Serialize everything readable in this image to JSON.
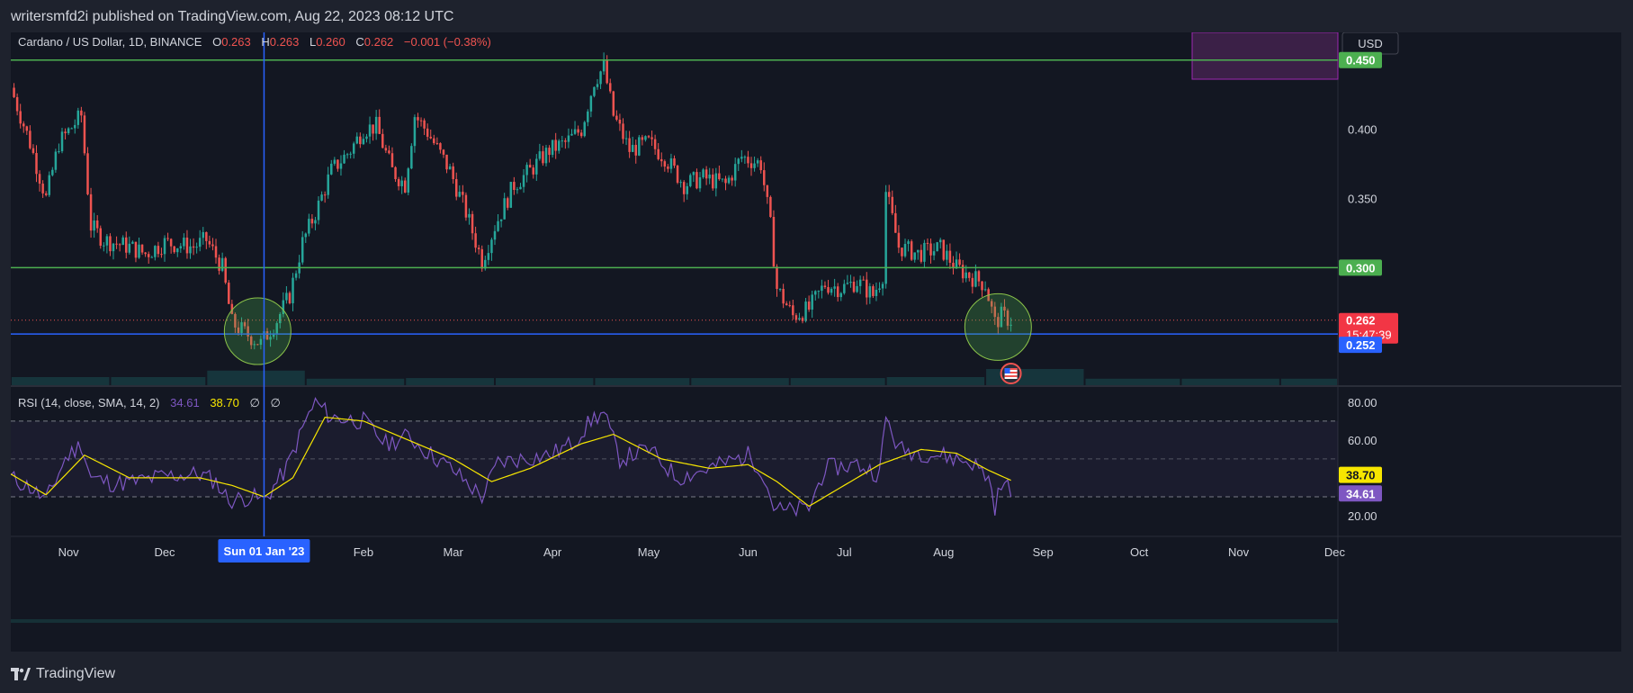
{
  "header": {
    "publisher": "writersmfd2i published on TradingView.com, Aug 22, 2023 08:12 UTC"
  },
  "legend": {
    "symbol": "Cardano / US Dollar, 1D, BINANCE",
    "o_label": "O",
    "o_value": "0.263",
    "h_label": "H",
    "h_value": "0.263",
    "l_label": "L",
    "l_value": "0.260",
    "c_label": "C",
    "c_value": "0.262",
    "change": "−0.001 (−0.38%)"
  },
  "currency_button": "USD",
  "price_axis": {
    "ticks": [
      "0.450",
      "0.400",
      "0.350",
      "0.300"
    ],
    "last_price": "0.262",
    "countdown": "15:47:39",
    "support_label": "0.252",
    "resistance_high": "0.450",
    "resistance_low": "0.300"
  },
  "rsi": {
    "title": "RSI (14, close, SMA, 14, 2)",
    "rsi_value": "34.61",
    "sma_value": "38.70",
    "extra1": "∅",
    "extra2": "∅",
    "ticks": [
      "80.00",
      "60.00",
      "20.00"
    ],
    "rsi_badge": "34.61",
    "sma_badge": "38.70"
  },
  "time_axis": {
    "labels": [
      "Nov",
      "Dec",
      "Feb",
      "Mar",
      "Apr",
      "May",
      "Jun",
      "Jul",
      "Aug",
      "Sep",
      "Oct",
      "Nov",
      "Dec"
    ],
    "crosshair_label": "Sun 01 Jan '23"
  },
  "brand": "TradingView",
  "colors": {
    "background": "#131722",
    "up": "#26a69a",
    "down": "#ef5350",
    "level_line": "#4caf50",
    "support_line": "#2962ff",
    "rsi_line": "#7e57c2",
    "rsi_sma": "#f7e600"
  },
  "chart_data": {
    "type": "candlestick",
    "symbol": "ADA/USD",
    "interval": "1D",
    "exchange": "BINANCE",
    "x_range": [
      "2022-10-14",
      "2023-12-02"
    ],
    "y_range": [
      0.215,
      0.47
    ],
    "horizontal_levels": [
      0.45,
      0.3,
      0.252
    ],
    "last_price": 0.262,
    "price_keypoints": [
      [
        "2022-10-14",
        0.43
      ],
      [
        "2022-10-20",
        0.39
      ],
      [
        "2022-10-25",
        0.35
      ],
      [
        "2022-10-29",
        0.39
      ],
      [
        "2022-11-05",
        0.41
      ],
      [
        "2022-11-08",
        0.33
      ],
      [
        "2022-11-12",
        0.32
      ],
      [
        "2022-11-20",
        0.315
      ],
      [
        "2022-11-25",
        0.31
      ],
      [
        "2022-12-01",
        0.318
      ],
      [
        "2022-12-10",
        0.315
      ],
      [
        "2022-12-14",
        0.32
      ],
      [
        "2022-12-19",
        0.3
      ],
      [
        "2022-12-22",
        0.26
      ],
      [
        "2022-12-26",
        0.253
      ],
      [
        "2022-12-31",
        0.245
      ],
      [
        "2023-01-05",
        0.262
      ],
      [
        "2023-01-09",
        0.28
      ],
      [
        "2023-01-13",
        0.318
      ],
      [
        "2023-01-18",
        0.345
      ],
      [
        "2023-01-22",
        0.37
      ],
      [
        "2023-01-28",
        0.385
      ],
      [
        "2023-02-01",
        0.4
      ],
      [
        "2023-02-05",
        0.402
      ],
      [
        "2023-02-10",
        0.37
      ],
      [
        "2023-02-14",
        0.36
      ],
      [
        "2023-02-17",
        0.41
      ],
      [
        "2023-02-21",
        0.398
      ],
      [
        "2023-02-28",
        0.37
      ],
      [
        "2023-03-05",
        0.34
      ],
      [
        "2023-03-10",
        0.305
      ],
      [
        "2023-03-14",
        0.33
      ],
      [
        "2023-03-20",
        0.36
      ],
      [
        "2023-03-25",
        0.37
      ],
      [
        "2023-03-31",
        0.385
      ],
      [
        "2023-04-05",
        0.39
      ],
      [
        "2023-04-10",
        0.4
      ],
      [
        "2023-04-14",
        0.435
      ],
      [
        "2023-04-17",
        0.445
      ],
      [
        "2023-04-20",
        0.41
      ],
      [
        "2023-04-25",
        0.385
      ],
      [
        "2023-05-01",
        0.39
      ],
      [
        "2023-05-06",
        0.38
      ],
      [
        "2023-05-12",
        0.36
      ],
      [
        "2023-05-18",
        0.365
      ],
      [
        "2023-05-25",
        0.36
      ],
      [
        "2023-05-30",
        0.38
      ],
      [
        "2023-06-05",
        0.375
      ],
      [
        "2023-06-08",
        0.33
      ],
      [
        "2023-06-10",
        0.285
      ],
      [
        "2023-06-15",
        0.265
      ],
      [
        "2023-06-20",
        0.27
      ],
      [
        "2023-06-25",
        0.288
      ],
      [
        "2023-06-30",
        0.285
      ],
      [
        "2023-07-05",
        0.29
      ],
      [
        "2023-07-10",
        0.28
      ],
      [
        "2023-07-13",
        0.295
      ],
      [
        "2023-07-14",
        0.355
      ],
      [
        "2023-07-18",
        0.315
      ],
      [
        "2023-07-24",
        0.31
      ],
      [
        "2023-07-31",
        0.314
      ],
      [
        "2023-08-05",
        0.3
      ],
      [
        "2023-08-10",
        0.293
      ],
      [
        "2023-08-14",
        0.288
      ],
      [
        "2023-08-17",
        0.26
      ],
      [
        "2023-08-19",
        0.265
      ],
      [
        "2023-08-22",
        0.262
      ]
    ],
    "volume_blocks": [
      {
        "start": "2022-10-14",
        "end": "2022-11-14",
        "level": 0.25
      },
      {
        "start": "2022-11-14",
        "end": "2022-12-14",
        "level": 0.25
      },
      {
        "start": "2022-12-14",
        "end": "2023-01-14",
        "level": 0.45
      },
      {
        "start": "2023-01-14",
        "end": "2023-02-14",
        "level": 0.2
      },
      {
        "start": "2023-02-14",
        "end": "2023-03-14",
        "level": 0.22
      },
      {
        "start": "2023-03-14",
        "end": "2023-04-14",
        "level": 0.22
      },
      {
        "start": "2023-04-14",
        "end": "2023-05-14",
        "level": 0.22
      },
      {
        "start": "2023-05-14",
        "end": "2023-06-14",
        "level": 0.22
      },
      {
        "start": "2023-06-14",
        "end": "2023-07-14",
        "level": 0.22
      },
      {
        "start": "2023-07-14",
        "end": "2023-08-14",
        "level": 0.25
      },
      {
        "start": "2023-08-14",
        "end": "2023-09-14",
        "level": 0.5
      },
      {
        "start": "2023-09-14",
        "end": "2023-10-14",
        "level": 0.2
      },
      {
        "start": "2023-10-14",
        "end": "2023-11-14",
        "level": 0.2
      },
      {
        "start": "2023-11-14",
        "end": "2023-12-02",
        "level": 0.2
      }
    ],
    "rsi_y_range": [
      10,
      88
    ],
    "rsi_keypoints": [
      [
        "2022-10-14",
        40
      ],
      [
        "2022-10-20",
        35
      ],
      [
        "2022-10-25",
        28
      ],
      [
        "2022-10-31",
        50
      ],
      [
        "2022-11-05",
        58
      ],
      [
        "2022-11-08",
        40
      ],
      [
        "2022-11-15",
        37
      ],
      [
        "2022-11-22",
        38
      ],
      [
        "2022-12-01",
        41
      ],
      [
        "2022-12-12",
        42
      ],
      [
        "2022-12-17",
        38
      ],
      [
        "2022-12-21",
        28
      ],
      [
        "2022-12-28",
        30
      ],
      [
        "2023-01-01",
        28
      ],
      [
        "2023-01-08",
        45
      ],
      [
        "2023-01-14",
        70
      ],
      [
        "2023-01-17",
        80
      ],
      [
        "2023-01-22",
        72
      ],
      [
        "2023-02-01",
        70
      ],
      [
        "2023-02-08",
        58
      ],
      [
        "2023-02-15",
        62
      ],
      [
        "2023-02-20",
        55
      ],
      [
        "2023-03-01",
        44
      ],
      [
        "2023-03-10",
        30
      ],
      [
        "2023-03-15",
        48
      ],
      [
        "2023-03-22",
        50
      ],
      [
        "2023-03-31",
        52
      ],
      [
        "2023-04-07",
        58
      ],
      [
        "2023-04-14",
        72
      ],
      [
        "2023-04-17",
        74
      ],
      [
        "2023-04-22",
        50
      ],
      [
        "2023-05-01",
        55
      ],
      [
        "2023-05-10",
        40
      ],
      [
        "2023-05-20",
        45
      ],
      [
        "2023-06-01",
        52
      ],
      [
        "2023-06-05",
        45
      ],
      [
        "2023-06-09",
        25
      ],
      [
        "2023-06-12",
        22
      ],
      [
        "2023-06-20",
        24
      ],
      [
        "2023-06-25",
        45
      ],
      [
        "2023-07-05",
        47
      ],
      [
        "2023-07-12",
        42
      ],
      [
        "2023-07-14",
        72
      ],
      [
        "2023-07-18",
        55
      ],
      [
        "2023-07-31",
        52
      ],
      [
        "2023-08-05",
        50
      ],
      [
        "2023-08-10",
        48
      ],
      [
        "2023-08-15",
        40
      ],
      [
        "2023-08-17",
        25
      ],
      [
        "2023-08-19",
        36
      ],
      [
        "2023-08-22",
        34.61
      ]
    ],
    "rsi_sma_keypoints": [
      [
        "2022-10-14",
        42
      ],
      [
        "2022-10-25",
        31
      ],
      [
        "2022-11-06",
        52
      ],
      [
        "2022-11-20",
        40
      ],
      [
        "2022-12-12",
        40
      ],
      [
        "2022-12-22",
        36
      ],
      [
        "2023-01-01",
        30
      ],
      [
        "2023-01-10",
        40
      ],
      [
        "2023-01-20",
        72
      ],
      [
        "2023-02-01",
        70
      ],
      [
        "2023-02-15",
        60
      ],
      [
        "2023-03-01",
        50
      ],
      [
        "2023-03-13",
        38
      ],
      [
        "2023-03-25",
        45
      ],
      [
        "2023-04-10",
        58
      ],
      [
        "2023-04-20",
        63
      ],
      [
        "2023-05-05",
        50
      ],
      [
        "2023-05-20",
        45
      ],
      [
        "2023-06-01",
        47
      ],
      [
        "2023-06-10",
        38
      ],
      [
        "2023-06-20",
        25
      ],
      [
        "2023-06-30",
        35
      ],
      [
        "2023-07-12",
        47
      ],
      [
        "2023-07-25",
        55
      ],
      [
        "2023-08-05",
        53
      ],
      [
        "2023-08-15",
        44
      ],
      [
        "2023-08-22",
        38.7
      ]
    ],
    "rsi_levels": [
      70,
      50,
      30
    ]
  }
}
